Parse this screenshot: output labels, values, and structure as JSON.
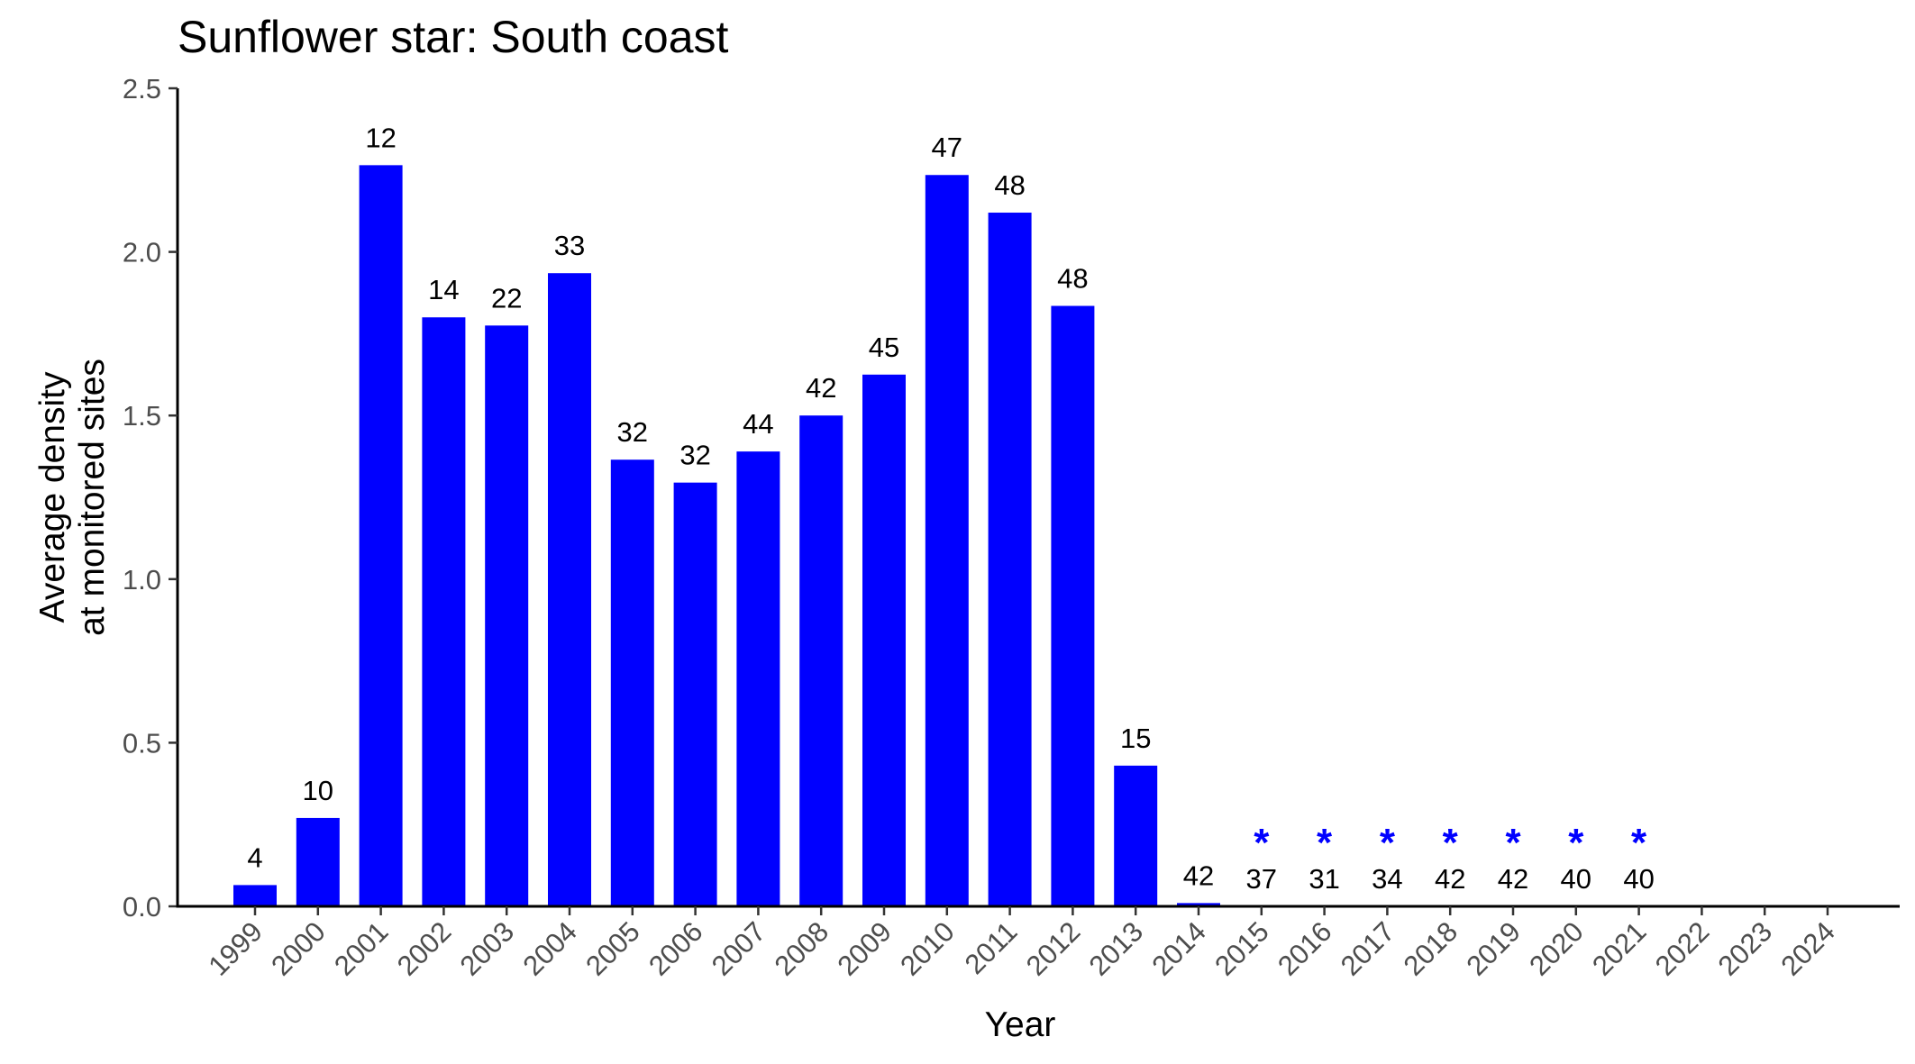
{
  "chart_data": {
    "type": "bar",
    "title": "Sunflower star: South coast",
    "xlabel": "Year",
    "ylabel_lines": [
      "Average density",
      "at monitored sites"
    ],
    "ylim": [
      0,
      2.5
    ],
    "yticks": [
      "0.0",
      "0.5",
      "1.0",
      "1.5",
      "2.0",
      "2.5"
    ],
    "ytick_values": [
      0,
      0.5,
      1.0,
      1.5,
      2.0,
      2.5
    ],
    "categories": [
      "1999",
      "2000",
      "2001",
      "2002",
      "2003",
      "2004",
      "2005",
      "2006",
      "2007",
      "2008",
      "2009",
      "2010",
      "2011",
      "2012",
      "2013",
      "2014",
      "2015",
      "2016",
      "2017",
      "2018",
      "2019",
      "2020",
      "2021",
      "2022",
      "2023",
      "2024"
    ],
    "values": [
      0.065,
      0.27,
      2.265,
      1.8,
      1.775,
      1.935,
      1.365,
      1.295,
      1.39,
      1.5,
      1.625,
      2.235,
      2.12,
      1.835,
      0.43,
      0.01,
      0,
      0,
      0,
      0,
      0,
      0,
      0,
      null,
      null,
      null
    ],
    "bar_labels": [
      "4",
      "10",
      "12",
      "14",
      "22",
      "33",
      "32",
      "32",
      "44",
      "42",
      "45",
      "47",
      "48",
      "48",
      "15",
      "42",
      "37",
      "31",
      "34",
      "42",
      "42",
      "40",
      "40",
      "",
      "",
      ""
    ],
    "zero_marker": "*",
    "zero_marker_years": [
      "2015",
      "2016",
      "2017",
      "2018",
      "2019",
      "2020",
      "2021"
    ],
    "bar_color": "#0000ff",
    "grid": false,
    "legend": "none"
  }
}
